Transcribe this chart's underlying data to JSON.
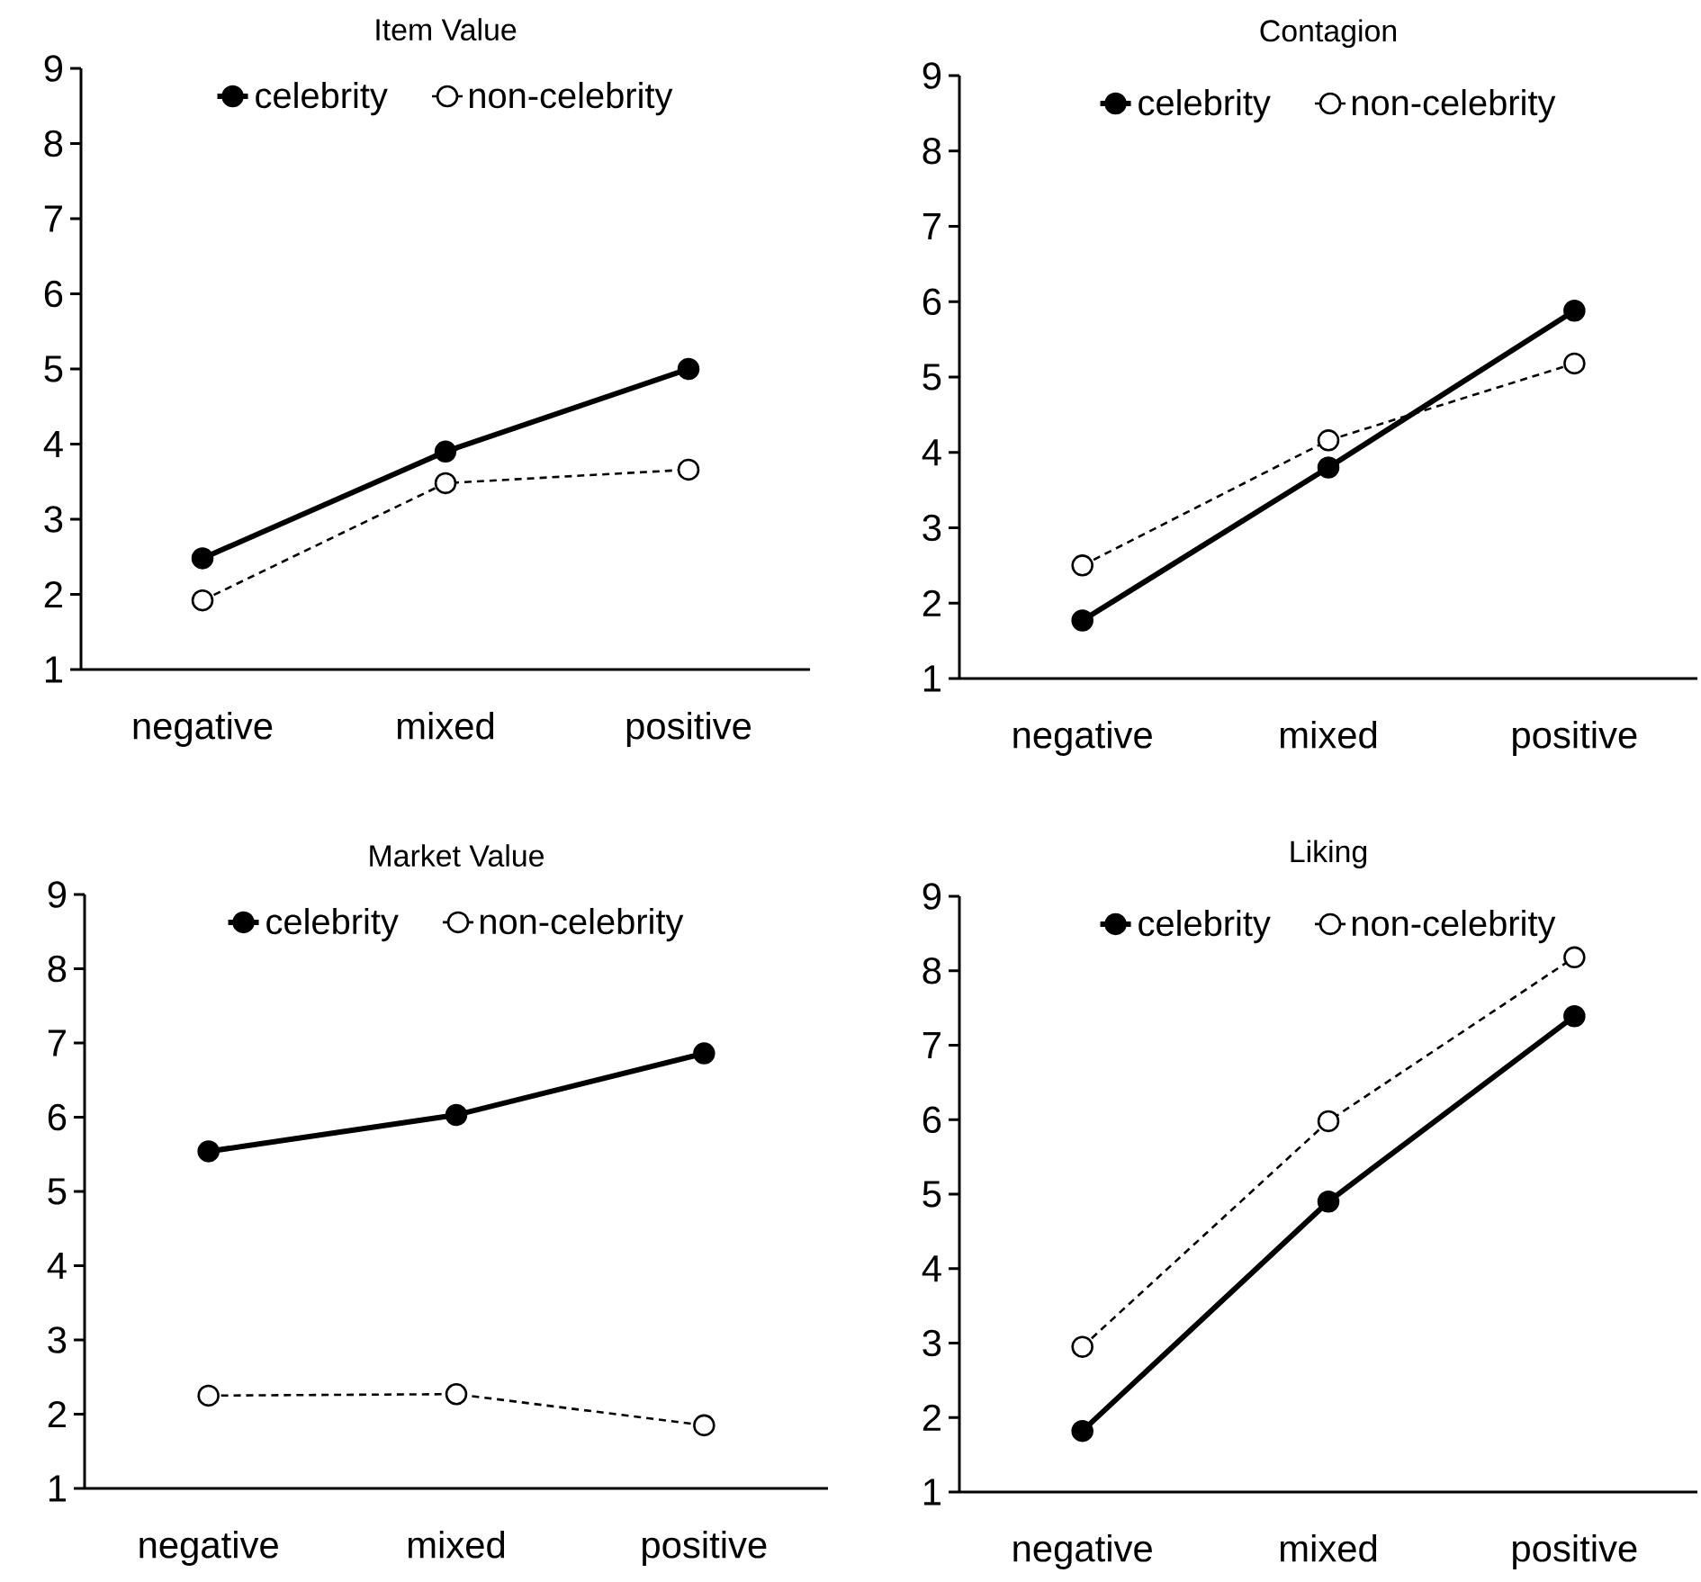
{
  "chart_data": [
    {
      "type": "line",
      "title": "Item Value",
      "categories": [
        "negative",
        "mixed",
        "positive"
      ],
      "ylim": [
        1,
        9
      ],
      "yticks": [
        1,
        2,
        3,
        4,
        5,
        6,
        7,
        8,
        9
      ],
      "legend": "top",
      "marker": "circle",
      "series": [
        {
          "name": "celebrity",
          "color": "#000000",
          "line_style": "solid",
          "values": [
            2.48,
            3.9,
            5.0
          ]
        },
        {
          "name": "non-celebrity",
          "color": "#000000",
          "line_style": "dashed",
          "values": [
            1.92,
            3.48,
            3.66
          ]
        }
      ]
    },
    {
      "type": "line",
      "title": "Contagion",
      "categories": [
        "negative",
        "mixed",
        "positive"
      ],
      "ylim": [
        1,
        9
      ],
      "yticks": [
        1,
        2,
        3,
        4,
        5,
        6,
        7,
        8,
        9
      ],
      "legend": "top",
      "marker": "circle",
      "series": [
        {
          "name": "celebrity",
          "color": "#000000",
          "line_style": "solid",
          "values": [
            1.77,
            3.8,
            5.88
          ]
        },
        {
          "name": "non-celebrity",
          "color": "#000000",
          "line_style": "dashed",
          "values": [
            2.5,
            4.16,
            5.18
          ]
        }
      ]
    },
    {
      "type": "line",
      "title": "Market Value",
      "categories": [
        "negative",
        "mixed",
        "positive"
      ],
      "ylim": [
        1,
        9
      ],
      "yticks": [
        1,
        2,
        3,
        4,
        5,
        6,
        7,
        8,
        9
      ],
      "legend": "top",
      "marker": "circle",
      "series": [
        {
          "name": "celebrity",
          "color": "#000000",
          "line_style": "solid",
          "values": [
            5.54,
            6.03,
            6.86
          ]
        },
        {
          "name": "non-celebrity",
          "color": "#000000",
          "line_style": "dashed",
          "values": [
            2.25,
            2.27,
            1.85
          ]
        }
      ]
    },
    {
      "type": "line",
      "title": "Liking",
      "categories": [
        "negative",
        "mixed",
        "positive"
      ],
      "ylim": [
        1,
        9
      ],
      "yticks": [
        1,
        2,
        3,
        4,
        5,
        6,
        7,
        8,
        9
      ],
      "legend": "top",
      "marker": "circle",
      "series": [
        {
          "name": "celebrity",
          "color": "#000000",
          "line_style": "solid",
          "values": [
            1.82,
            4.9,
            7.39
          ]
        },
        {
          "name": "non-celebrity",
          "color": "#000000",
          "line_style": "dashed",
          "values": [
            2.95,
            5.98,
            8.18
          ]
        }
      ]
    }
  ]
}
